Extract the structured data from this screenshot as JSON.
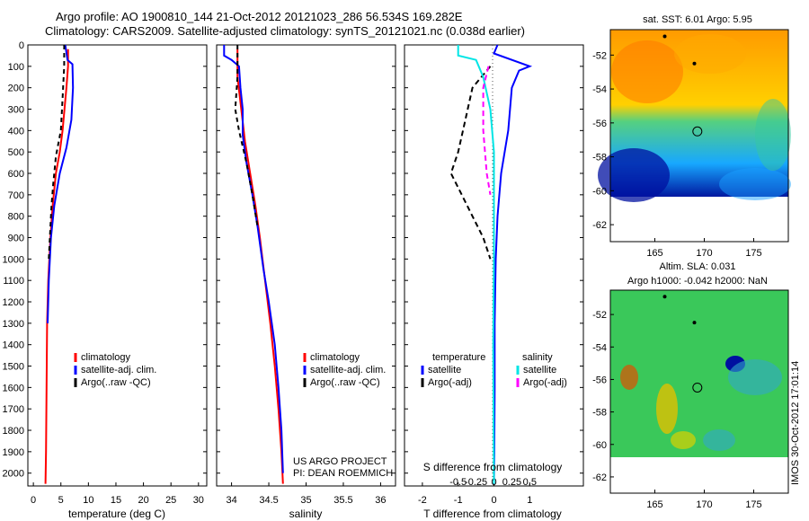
{
  "header": {
    "line1": "Argo profile: AO 1900810_144 21-Oct-2012 20121023_286 56.534S 169.282E",
    "line2": "Climatology: CARS2009. Satellite-adjusted climatology: synTS_20121021.nc (0.038d earlier)"
  },
  "depth_axis": {
    "ticks": [
      0,
      100,
      200,
      300,
      400,
      500,
      600,
      700,
      800,
      900,
      1000,
      1100,
      1200,
      1300,
      1400,
      1500,
      1600,
      1700,
      1800,
      1900,
      2000
    ],
    "range": [
      0,
      2060
    ]
  },
  "colors": {
    "climatology": "#ff0000",
    "satellite": "#0000ff",
    "argo": "#000000",
    "sal_satellite": "#00e5e5",
    "sal_argo": "#ff00ff",
    "dotted": "#555555"
  },
  "chart_data": [
    {
      "type": "line",
      "xlabel": "temperature (deg C)",
      "xlim": [
        -1,
        31.5
      ],
      "xticks": [
        0,
        5,
        10,
        15,
        20,
        25,
        30
      ],
      "xtick_labels": [
        "0",
        "5",
        "10",
        "15",
        "20",
        "25",
        "30"
      ],
      "legend": {
        "placement": "lower-middle",
        "entries": [
          "climatology",
          "satellite-adj. clim.",
          "Argo(..raw -QC)"
        ]
      },
      "series": [
        {
          "name": "climatology",
          "color": "#ff0000",
          "dash": "",
          "points": [
            [
              6.3,
              20
            ],
            [
              6.3,
              100
            ],
            [
              6.0,
              200
            ],
            [
              5.3,
              400
            ],
            [
              4.8,
              500
            ],
            [
              4.1,
              600
            ],
            [
              3.5,
              750
            ],
            [
              3.1,
              900
            ],
            [
              2.7,
              1100
            ],
            [
              2.5,
              1300
            ],
            [
              2.4,
              1600
            ],
            [
              2.3,
              1900
            ],
            [
              2.2,
              2050
            ]
          ]
        },
        {
          "name": "satellite-adj. clim.",
          "color": "#0000ff",
          "dash": "",
          "points": [
            [
              5.8,
              0
            ],
            [
              6.2,
              70
            ],
            [
              7.1,
              90
            ],
            [
              7.2,
              200
            ],
            [
              6.9,
              350
            ],
            [
              6.0,
              480
            ],
            [
              4.8,
              600
            ],
            [
              3.8,
              750
            ],
            [
              3.2,
              900
            ],
            [
              2.8,
              1100
            ],
            [
              2.6,
              1300
            ]
          ]
        },
        {
          "name": "Argo(..raw -QC)",
          "color": "#000000",
          "dash": "5,4",
          "points": [
            [
              5.6,
              0
            ],
            [
              5.6,
              100
            ],
            [
              5.3,
              250
            ],
            [
              5.0,
              400
            ],
            [
              4.1,
              520
            ],
            [
              3.6,
              650
            ],
            [
              3.3,
              750
            ],
            [
              3.0,
              900
            ],
            [
              2.8,
              1000
            ]
          ]
        }
      ]
    },
    {
      "type": "line",
      "xlabel": "salinity",
      "xlim": [
        33.8,
        36.2
      ],
      "xticks": [
        34,
        34.5,
        35,
        35.5,
        36
      ],
      "xtick_labels": [
        "34",
        "34.5",
        "35",
        "35.5",
        "36"
      ],
      "legend": {
        "placement": "lower-right",
        "entries": [
          "climatology",
          "satellite-adj. clim.",
          "Argo(..raw -QC)"
        ]
      },
      "annotations": [
        "US ARGO PROJECT",
        "PI: DEAN ROEMMICH"
      ],
      "series": [
        {
          "name": "climatology",
          "color": "#ff0000",
          "dash": "",
          "points": [
            [
              34.08,
              20
            ],
            [
              34.08,
              150
            ],
            [
              34.13,
              300
            ],
            [
              34.18,
              450
            ],
            [
              34.25,
              600
            ],
            [
              34.32,
              750
            ],
            [
              34.38,
              900
            ],
            [
              34.45,
              1100
            ],
            [
              34.52,
              1300
            ],
            [
              34.58,
              1500
            ],
            [
              34.63,
              1700
            ],
            [
              34.67,
              1900
            ],
            [
              34.69,
              2050
            ]
          ]
        },
        {
          "name": "satellite-adj. clim.",
          "color": "#0000ff",
          "dash": "",
          "points": [
            [
              33.9,
              0
            ],
            [
              33.9,
              50
            ],
            [
              34.0,
              70
            ],
            [
              34.1,
              100
            ],
            [
              34.12,
              200
            ],
            [
              34.15,
              300
            ],
            [
              34.15,
              420
            ],
            [
              34.2,
              550
            ],
            [
              34.28,
              700
            ],
            [
              34.35,
              850
            ],
            [
              34.43,
              1050
            ],
            [
              34.5,
              1200
            ],
            [
              34.58,
              1400
            ],
            [
              34.63,
              1600
            ],
            [
              34.67,
              1800
            ],
            [
              34.69,
              2000
            ]
          ]
        },
        {
          "name": "Argo(..raw -QC)",
          "color": "#000000",
          "dash": "5,4",
          "points": [
            [
              34.08,
              0
            ],
            [
              34.08,
              150
            ],
            [
              34.05,
              300
            ],
            [
              34.1,
              400
            ],
            [
              34.2,
              550
            ],
            [
              34.28,
              700
            ],
            [
              34.35,
              850
            ]
          ]
        }
      ]
    },
    {
      "type": "line",
      "xlabel": "T difference from climatology",
      "xlabel2": "S difference from climatology",
      "xlim": [
        -2.5,
        2.5
      ],
      "xticks": [
        -2,
        -1,
        0,
        1
      ],
      "xtick_labels": [
        "-2",
        "-1",
        "0",
        "1"
      ],
      "xticks2": [
        -1,
        -0.5,
        0,
        0.5,
        1
      ],
      "xtick2_labels": [
        "-0.5",
        "-0.25",
        "0",
        "0.25",
        "0.5"
      ],
      "legend": {
        "placement": "lower-middle",
        "entries": [
          "temperature",
          "satellite",
          "Argo(-adj)",
          "salinity",
          "satellite",
          "Argo(-adj)"
        ]
      },
      "series": [
        {
          "name": "satellite",
          "color": "#0000ff",
          "dash": "",
          "points": [
            [
              0.1,
              0
            ],
            [
              0.0,
              40
            ],
            [
              1.0,
              100
            ],
            [
              0.7,
              120
            ],
            [
              0.5,
              200
            ],
            [
              0.4,
              400
            ],
            [
              0.2,
              600
            ],
            [
              0.1,
              800
            ],
            [
              0.05,
              1000
            ],
            [
              0.02,
              1300
            ],
            [
              0.02,
              1600
            ],
            [
              0.01,
              1900
            ],
            [
              0.0,
              2050
            ]
          ]
        },
        {
          "name": "Argo(-adj)",
          "color": "#000000",
          "dash": "6,4",
          "points": [
            [
              -0.1,
              100
            ],
            [
              -0.6,
              200
            ],
            [
              -0.8,
              350
            ],
            [
              -1.0,
              500
            ],
            [
              -1.2,
              600
            ],
            [
              -0.9,
              700
            ],
            [
              -0.6,
              800
            ],
            [
              -0.3,
              900
            ],
            [
              -0.1,
              1000
            ]
          ]
        },
        {
          "name": "salinity satellite",
          "color": "#00e5e5",
          "dash": "",
          "points": [
            [
              -1.0,
              0
            ],
            [
              -1.0,
              50
            ],
            [
              -0.5,
              70
            ],
            [
              -0.3,
              150
            ],
            [
              -0.1,
              300
            ],
            [
              0.0,
              500
            ],
            [
              0.0,
              700
            ],
            [
              0.0,
              1000
            ],
            [
              -0.02,
              1400
            ],
            [
              0.0,
              2050
            ]
          ]
        },
        {
          "name": "salinity Argo(-adj)",
          "color": "#ff00ff",
          "dash": "6,4",
          "points": [
            [
              -0.15,
              100
            ],
            [
              -0.3,
              200
            ],
            [
              -0.3,
              400
            ],
            [
              -0.2,
              600
            ],
            [
              -0.1,
              700
            ]
          ]
        }
      ]
    },
    {
      "type": "heatmap",
      "title": "sat. SST: 6.01  Argo: 5.95",
      "xlim": [
        160.5,
        178.5
      ],
      "ylim": [
        -63,
        -50.5
      ],
      "xticks": [
        165,
        170,
        175
      ],
      "xtick_labels": [
        "165",
        "170",
        "175"
      ],
      "yticks": [
        -62,
        -60,
        -58,
        -56,
        -54,
        -52
      ],
      "ytick_labels": [
        "-62",
        "-60",
        "-58",
        "-56",
        "-54",
        "-52"
      ],
      "data_ylim": [
        -60,
        -50.5
      ],
      "markers": [
        {
          "lon": 166,
          "lat": -50.9
        },
        {
          "lon": 169,
          "lat": -52.5
        }
      ],
      "argo_position": {
        "lon": 169.3,
        "lat": -56.5
      }
    },
    {
      "type": "heatmap",
      "title": "Altim. SLA: 0.031",
      "subtitle": "Argo h1000: -0.042 h2000: NaN",
      "xlim": [
        160.5,
        178.5
      ],
      "ylim": [
        -63,
        -50.5
      ],
      "xticks": [
        165,
        170,
        175
      ],
      "xtick_labels": [
        "165",
        "170",
        "175"
      ],
      "yticks": [
        -62,
        -60,
        -58,
        -56,
        -54,
        -52
      ],
      "ytick_labels": [
        "-62",
        "-60",
        "-58",
        "-56",
        "-54",
        "-52"
      ],
      "data_ylim": [
        -60,
        -50.5
      ],
      "markers": [
        {
          "lon": 166,
          "lat": -50.9
        },
        {
          "lon": 169,
          "lat": -52.5
        }
      ],
      "argo_position": {
        "lon": 169.3,
        "lat": -56.5
      }
    }
  ],
  "stamp": "IMOS 30-Oct-2012 17:01:14"
}
